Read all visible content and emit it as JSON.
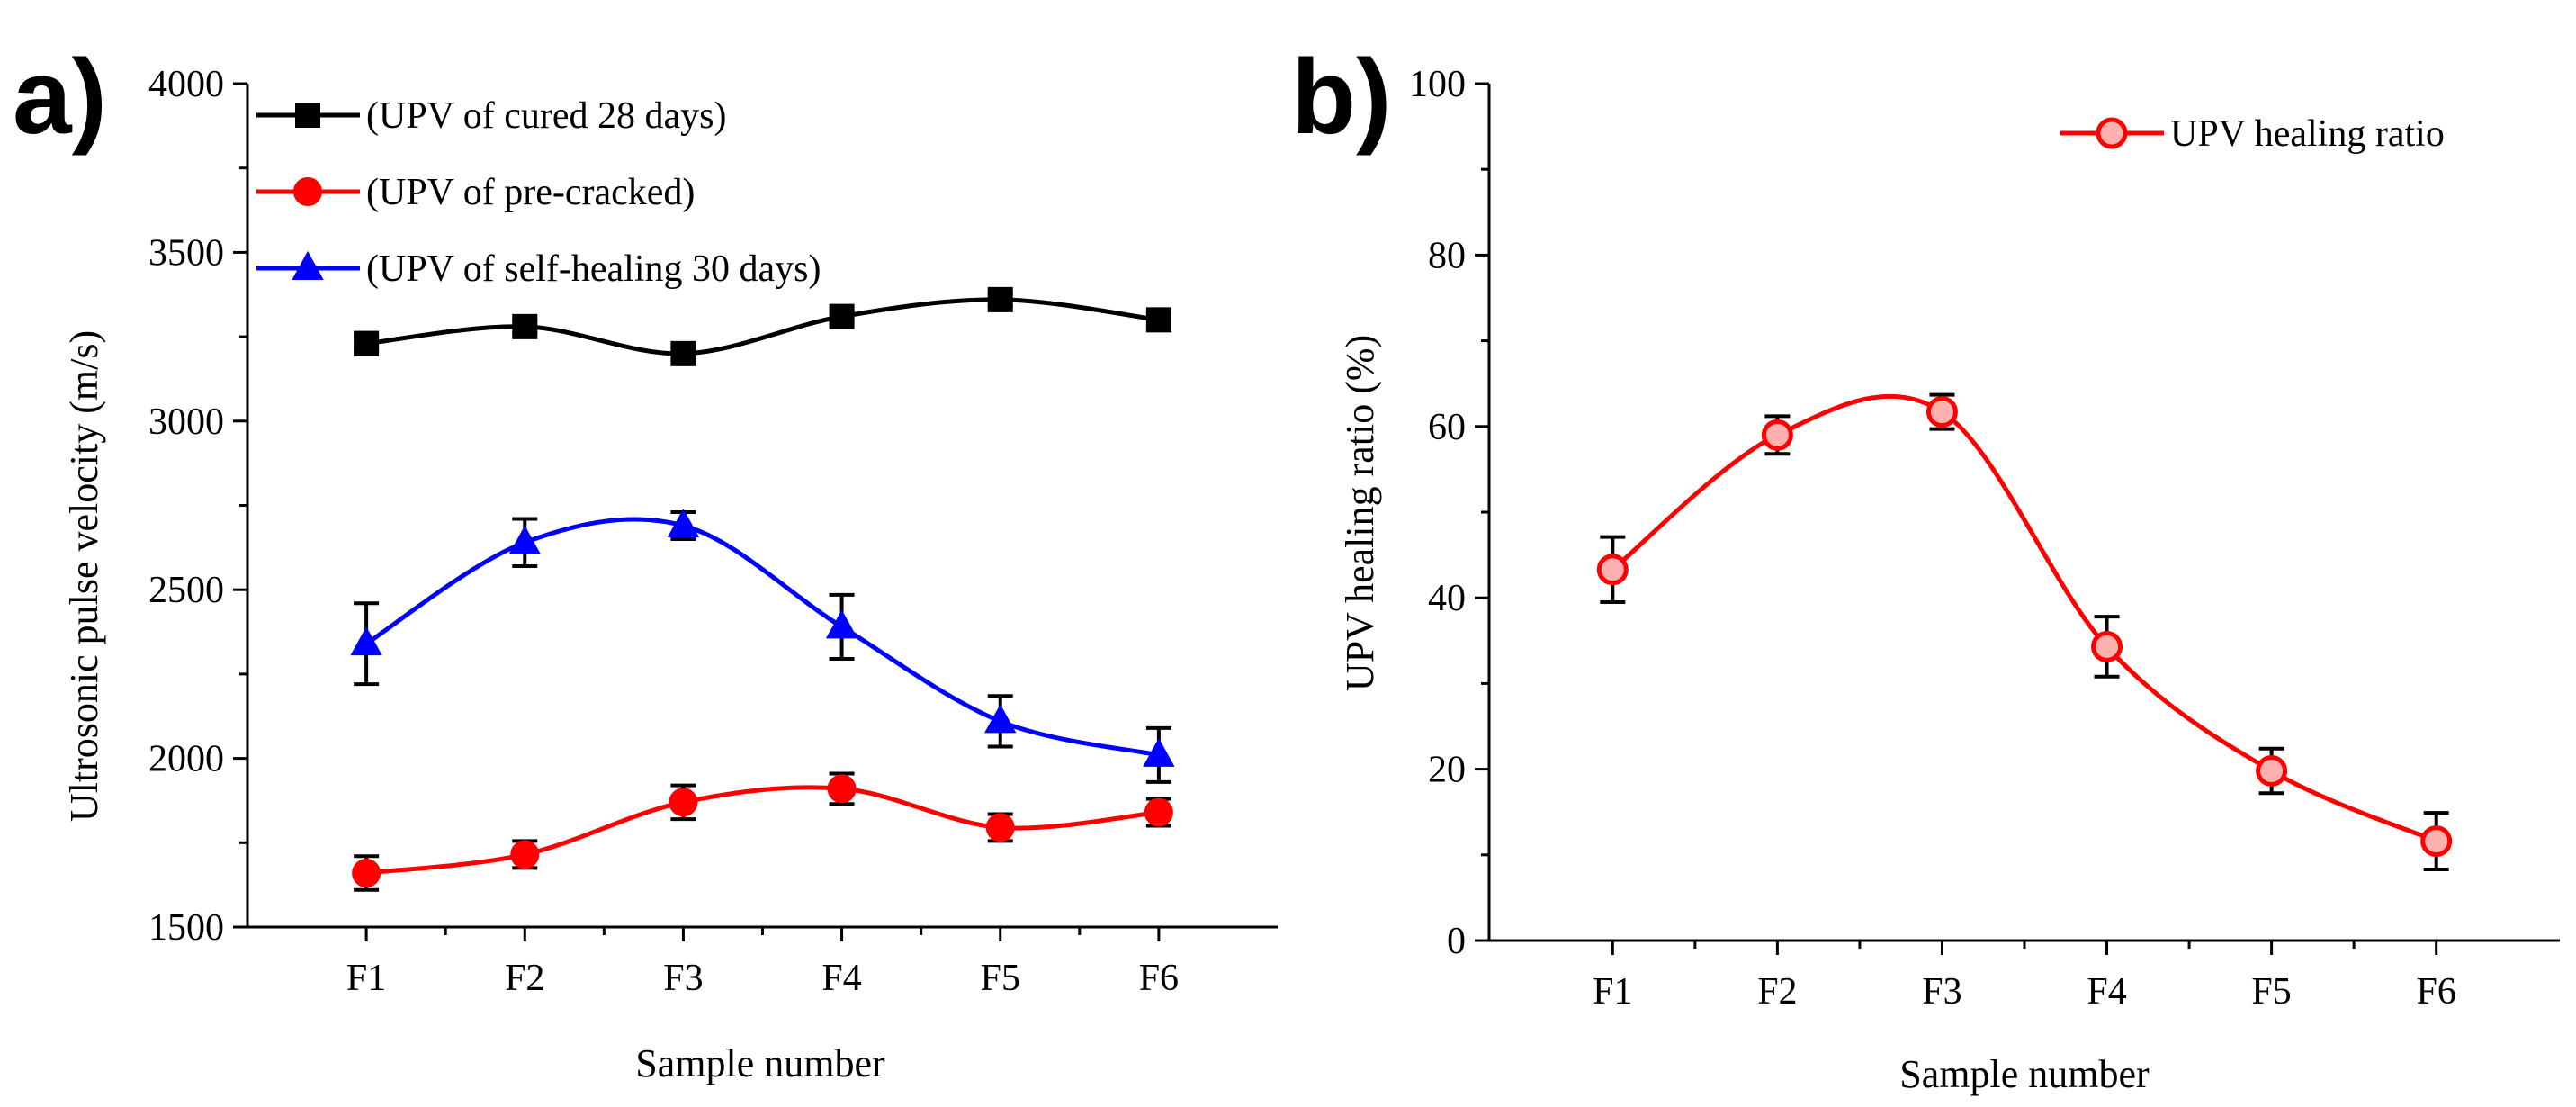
{
  "chart_data": [
    {
      "panel_label": "a)",
      "type": "line",
      "categories": [
        "F1",
        "F2",
        "F3",
        "F4",
        "F5",
        "F6"
      ],
      "xlabel": "Sample number",
      "ylabel": "Ultrosonic pulse velocity (m/s)",
      "ylim": [
        1500,
        4000
      ],
      "yticks": [
        "1500",
        "2000",
        "2500",
        "3000",
        "3500",
        "4000"
      ],
      "legend_position": "top-left",
      "grid": false,
      "series": [
        {
          "name": "(UPV of cured 28 days)",
          "color": "#000000",
          "marker": "square",
          "values": [
            3230,
            3280,
            3200,
            3310,
            3360,
            3300
          ],
          "error": [
            20,
            20,
            20,
            20,
            20,
            20
          ]
        },
        {
          "name": "(UPV of pre-cracked)",
          "color": "#ff0000",
          "marker": "circle",
          "values": [
            1660,
            1715,
            1870,
            1910,
            1795,
            1840
          ],
          "error": [
            50,
            40,
            50,
            45,
            40,
            40
          ]
        },
        {
          "name": "(UPV of self-healing 30 days)",
          "color": "#0000ff",
          "marker": "triangle",
          "values": [
            2340,
            2640,
            2690,
            2390,
            2110,
            2010
          ],
          "error": [
            120,
            70,
            40,
            95,
            75,
            80
          ]
        }
      ]
    },
    {
      "panel_label": "b)",
      "type": "line",
      "categories": [
        "F1",
        "F2",
        "F3",
        "F4",
        "F5",
        "F6"
      ],
      "xlabel": "Sample number",
      "ylabel": "UPV healing ratio (%)",
      "ylim": [
        0,
        100
      ],
      "yticks": [
        "0",
        "20",
        "40",
        "60",
        "80",
        "100"
      ],
      "legend_position": "top-right",
      "grid": false,
      "series": [
        {
          "name": "UPV healing ratio",
          "color": "#ff0000",
          "marker": "open-circle",
          "values": [
            43.3,
            59.0,
            61.7,
            34.3,
            19.8,
            11.6
          ],
          "error": [
            3.8,
            2.2,
            2.0,
            3.5,
            2.6,
            3.3
          ]
        }
      ]
    }
  ]
}
